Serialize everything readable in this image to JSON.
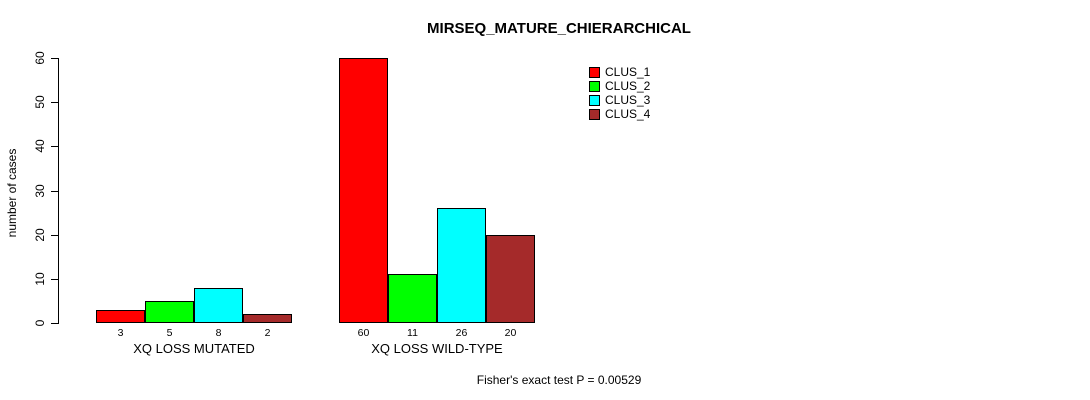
{
  "chart_data": {
    "type": "bar",
    "title": "MIRSEQ_MATURE_CHIERARCHICAL",
    "xlabel": "",
    "ylabel": "number of cases",
    "ylim": [
      0,
      60
    ],
    "yticks": [
      0,
      10,
      20,
      30,
      40,
      50,
      60
    ],
    "grid": false,
    "legend_position": "top-right",
    "categories": [
      "XQ LOSS MUTATED",
      "XQ LOSS WILD-TYPE"
    ],
    "series": [
      {
        "name": "CLUS_1",
        "color": "#FF0000",
        "values": [
          3,
          60
        ]
      },
      {
        "name": "CLUS_2",
        "color": "#00FF00",
        "values": [
          5,
          11
        ]
      },
      {
        "name": "CLUS_3",
        "color": "#00FFFF",
        "values": [
          8,
          26
        ]
      },
      {
        "name": "CLUS_4",
        "color": "#A52A2A",
        "values": [
          2,
          20
        ]
      }
    ],
    "bar_value_labels": [
      [
        "3",
        "5",
        "8",
        "2"
      ],
      [
        "60",
        "11",
        "26",
        "20"
      ]
    ],
    "annotation": "Fisher's exact test P = 0.00529"
  }
}
